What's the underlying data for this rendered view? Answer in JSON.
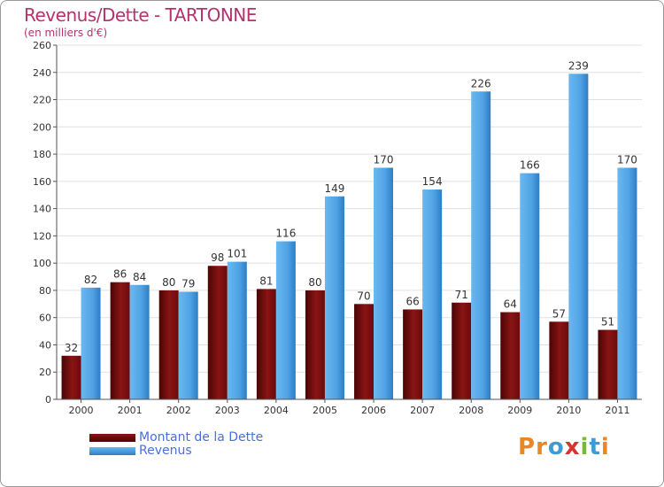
{
  "title": "Revenus/Dette - TARTONNE",
  "subtitle": "(en milliers d'€)",
  "colors": {
    "title": "#b5326e",
    "debt": "#8a1414",
    "debt_dark": "#4a0505",
    "revenue": "#5aaeea",
    "revenue_dark": "#2e7dc4",
    "grid": "#dddddd",
    "axis": "#333333"
  },
  "chart_data": {
    "type": "bar",
    "categories": [
      "2000",
      "2001",
      "2002",
      "2003",
      "2004",
      "2005",
      "2006",
      "2007",
      "2008",
      "2009",
      "2010",
      "2011"
    ],
    "series": [
      {
        "name": "Montant de la Dette",
        "values": [
          32,
          86,
          80,
          98,
          81,
          80,
          70,
          66,
          71,
          64,
          57,
          51
        ]
      },
      {
        "name": "Revenus",
        "values": [
          82,
          84,
          79,
          101,
          116,
          149,
          170,
          154,
          226,
          166,
          239,
          170
        ]
      }
    ],
    "yticks": [
      0,
      20,
      40,
      60,
      80,
      100,
      120,
      140,
      160,
      180,
      200,
      220,
      240,
      260
    ],
    "ylim": [
      0,
      260
    ],
    "grid": true,
    "legend_position": "bottom-left",
    "title": "Revenus/Dette - TARTONNE",
    "xlabel": "",
    "ylabel": "(en milliers d'€)"
  },
  "legend": [
    {
      "label": "Montant de la Dette"
    },
    {
      "label": "Revenus"
    }
  ],
  "logo": {
    "text": "Proxiti"
  }
}
